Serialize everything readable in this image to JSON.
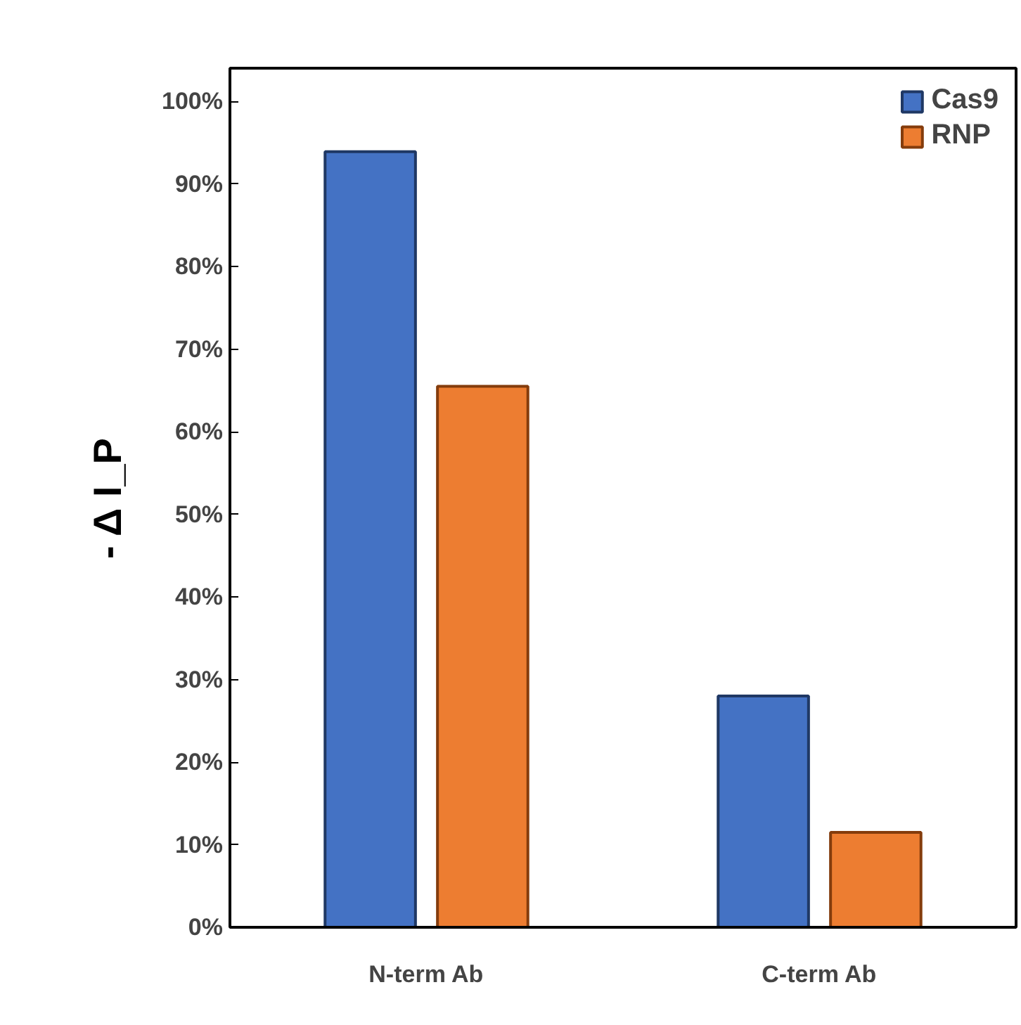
{
  "chart_data": {
    "type": "bar",
    "ylabel": "- Δ I_P",
    "categories": [
      "N-term Ab",
      "C-term Ab"
    ],
    "series": [
      {
        "name": "Cas9",
        "color": "#4472c4",
        "values": [
          93.9,
          28
        ]
      },
      {
        "name": "RNP",
        "color": "#ed7d31",
        "values": [
          65.5,
          11.5
        ]
      }
    ],
    "ylim": [
      0,
      104
    ],
    "yticks": [
      {
        "value": 0,
        "label": "0%"
      },
      {
        "value": 10,
        "label": "10%"
      },
      {
        "value": 20,
        "label": "20%"
      },
      {
        "value": 30,
        "label": "30%"
      },
      {
        "value": 40,
        "label": "40%"
      },
      {
        "value": 50,
        "label": "50%"
      },
      {
        "value": 60,
        "label": "60%"
      },
      {
        "value": 70,
        "label": "70%"
      },
      {
        "value": 80,
        "label": "80%"
      },
      {
        "value": 90,
        "label": "90%"
      },
      {
        "value": 100,
        "label": "100%"
      }
    ],
    "grid": false,
    "legend": "top right"
  }
}
